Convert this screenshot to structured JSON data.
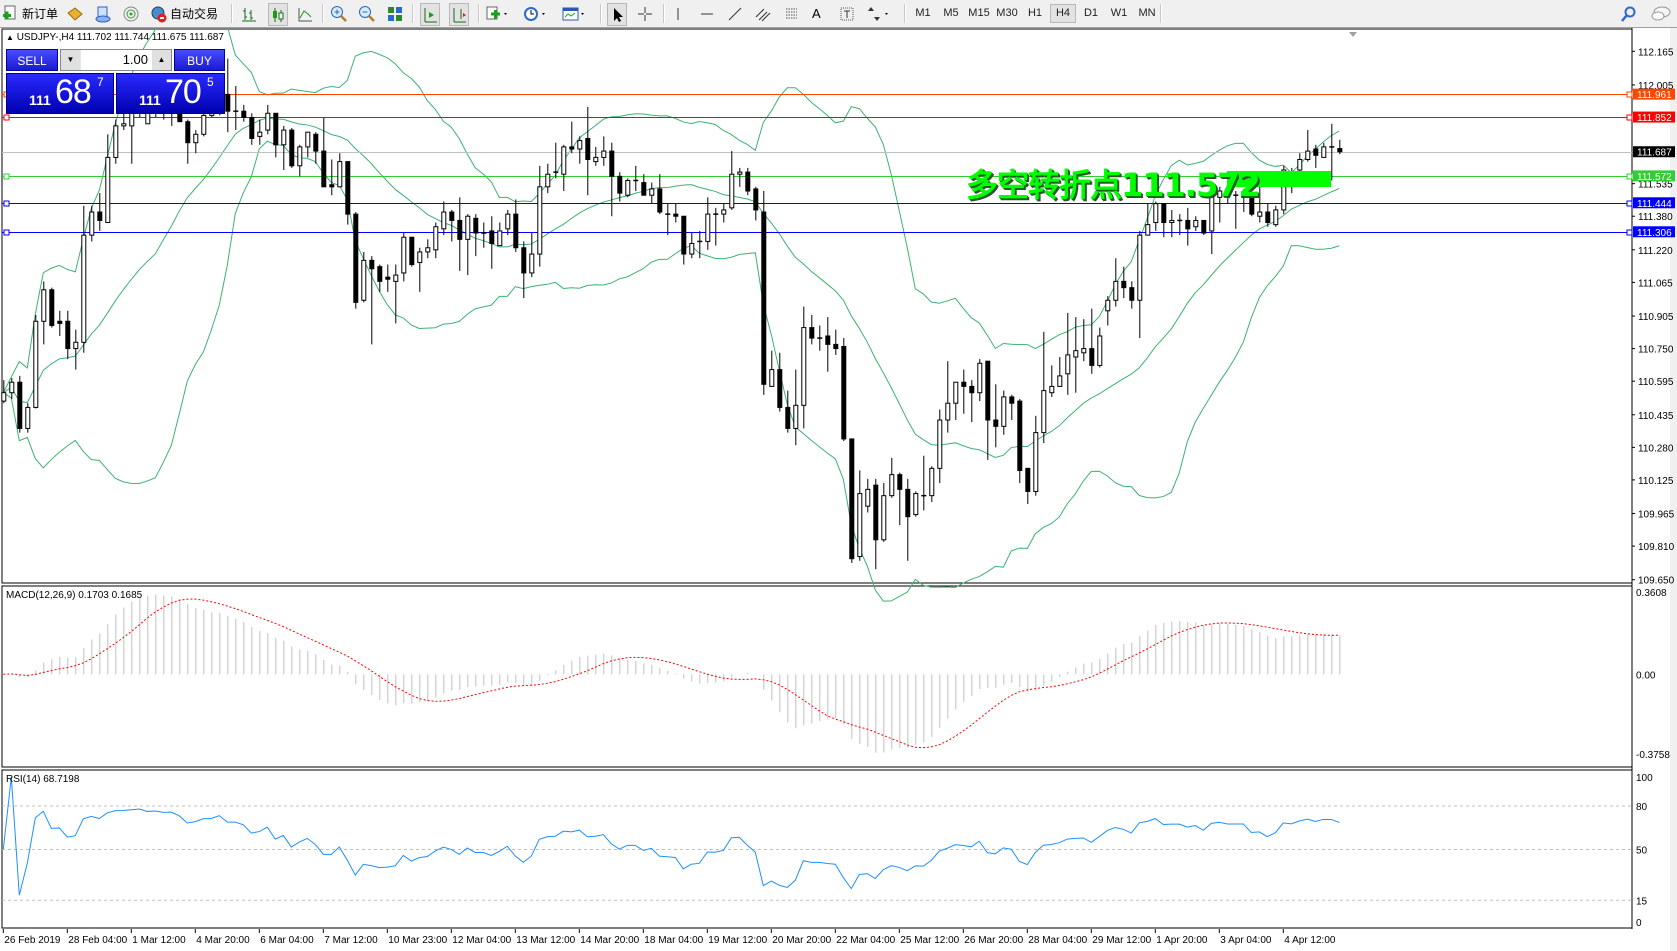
{
  "toolbar": {
    "new_order": "新订单",
    "auto_trading": "自动交易",
    "timeframes": [
      "M1",
      "M5",
      "M15",
      "M30",
      "H1",
      "H4",
      "D1",
      "W1",
      "MN"
    ],
    "active_timeframe": "H4"
  },
  "chart": {
    "symbol_info": "USDJPY-,H4  111.702 111.744 111.675 111.687",
    "trade_panel": {
      "sell": "SELL",
      "buy": "BUY",
      "lot": "1.00",
      "bid": {
        "prefix": "111",
        "pips": "68",
        "fraction": "7"
      },
      "ask": {
        "prefix": "111",
        "pips": "70",
        "fraction": "5"
      }
    },
    "annotation": "多空转折点111.572",
    "annotation_color": "#00FF00",
    "price_ticks": [
      "112.165",
      "112.005",
      "111.535",
      "111.380",
      "111.220",
      "111.065",
      "110.905",
      "110.750",
      "110.595",
      "110.435",
      "110.280",
      "110.125",
      "109.965",
      "109.810",
      "109.650"
    ],
    "levels": [
      {
        "price": "111.961",
        "color": "#FF4500",
        "text_color": "#FFFFFF"
      },
      {
        "price": "111.852",
        "color": "#FF0000",
        "text_color": "#FFFFFF"
      },
      {
        "price": "111.687",
        "color": "#000000",
        "line_color": "#C0C0C0",
        "text_color": "#FFFFFF"
      },
      {
        "price": "111.572",
        "color": "#32CD32",
        "text_color": "#FFFFFF"
      },
      {
        "price": "111.444",
        "color": "#0000FF",
        "text_color": "#FFFFFF"
      },
      {
        "price": "111.306",
        "color": "#0000FF",
        "text_color": "#FFFFFF"
      }
    ],
    "time_labels": [
      "26 Feb 2019",
      "28 Feb 04:00",
      "1 Mar 12:00",
      "4 Mar 20:00",
      "6 Mar 04:00",
      "7 Mar 12:00",
      "10 Mar 23:00",
      "12 Mar 04:00",
      "13 Mar 12:00",
      "14 Mar 20:00",
      "18 Mar 04:00",
      "19 Mar 12:00",
      "20 Mar 20:00",
      "22 Mar 04:00",
      "25 Mar 12:00",
      "26 Mar 20:00",
      "28 Mar 04:00",
      "29 Mar 12:00",
      "1 Apr 20:00",
      "3 Apr 04:00",
      "4 Apr 12:00"
    ],
    "bands_color": "#3CB371"
  },
  "macd": {
    "label": "MACD(12,26,9) 0.1703 0.1685",
    "ticks": [
      "0.3608",
      "0.00",
      "-0.3758"
    ],
    "range": [
      -0.3758,
      0.3608
    ],
    "histogram_color": "#C0C0C0",
    "signal_color": "#FF0000"
  },
  "rsi": {
    "label": "RSI(14) 68.7198",
    "ticks": [
      "100",
      "80",
      "50",
      "15",
      "0"
    ],
    "levels": [
      80,
      50,
      15
    ],
    "line_color": "#1E90FF"
  },
  "chart_data": {
    "type": "candlestick",
    "symbol": "USDJPY-",
    "timeframe": "H4",
    "ylim": [
      109.65,
      112.165
    ],
    "candle_format": [
      "open",
      "high",
      "low",
      "close"
    ],
    "candles": [
      [
        110.5,
        110.6,
        110.49,
        110.54
      ],
      [
        110.54,
        110.61,
        110.51,
        110.59
      ],
      [
        110.59,
        110.62,
        110.35,
        110.37
      ],
      [
        110.37,
        110.49,
        110.35,
        110.47
      ],
      [
        110.47,
        110.91,
        110.465,
        110.88
      ],
      [
        110.88,
        111.07,
        110.77,
        111.03
      ],
      [
        111.03,
        111.04,
        110.85,
        110.86
      ],
      [
        110.88,
        110.93,
        110.81,
        110.87
      ],
      [
        110.88,
        110.93,
        110.7,
        110.75
      ],
      [
        110.75,
        110.84,
        110.65,
        110.78
      ],
      [
        110.78,
        111.43,
        110.73,
        111.29
      ],
      [
        111.29,
        111.43,
        111.26,
        111.4
      ],
      [
        111.4,
        111.49,
        111.31,
        111.36
      ],
      [
        111.35,
        111.77,
        111.35,
        111.66
      ],
      [
        111.66,
        111.84,
        111.63,
        111.81
      ],
      [
        111.81,
        111.87,
        111.79,
        111.82
      ],
      [
        111.81,
        111.93,
        111.63,
        111.87
      ],
      [
        111.87,
        111.94,
        111.85,
        111.91
      ],
      [
        111.82,
        111.93,
        111.82,
        111.87
      ],
      [
        111.87,
        111.92,
        111.85,
        111.89
      ],
      [
        111.89,
        111.91,
        111.84,
        111.87
      ],
      [
        111.87,
        111.9,
        111.81,
        111.88
      ],
      [
        111.88,
        111.89,
        111.83,
        111.83
      ],
      [
        111.83,
        111.84,
        111.63,
        111.73
      ],
      [
        111.73,
        111.79,
        111.68,
        111.77
      ],
      [
        111.77,
        111.87,
        111.76,
        111.86
      ],
      [
        111.86,
        111.89,
        111.85,
        111.87
      ],
      [
        111.87,
        111.98,
        111.86,
        111.96
      ],
      [
        111.96,
        112.13,
        111.78,
        111.88
      ],
      [
        111.88,
        112.0,
        111.79,
        111.88
      ],
      [
        111.88,
        111.91,
        111.83,
        111.85
      ],
      [
        111.85,
        111.87,
        111.72,
        111.75
      ],
      [
        111.76,
        111.84,
        111.72,
        111.78
      ],
      [
        111.79,
        111.91,
        111.77,
        111.87
      ],
      [
        111.87,
        111.87,
        111.66,
        111.72
      ],
      [
        111.72,
        111.81,
        111.6,
        111.79
      ],
      [
        111.79,
        111.8,
        111.61,
        111.62
      ],
      [
        111.62,
        111.72,
        111.57,
        111.71
      ],
      [
        111.71,
        111.78,
        111.66,
        111.78
      ],
      [
        111.77,
        111.78,
        111.63,
        111.69
      ],
      [
        111.69,
        111.85,
        111.52,
        111.52
      ],
      [
        111.53,
        111.65,
        111.48,
        111.52
      ],
      [
        111.52,
        111.68,
        111.52,
        111.64
      ],
      [
        111.64,
        111.64,
        111.34,
        111.39
      ],
      [
        111.39,
        111.4,
        110.94,
        110.97
      ],
      [
        110.98,
        111.21,
        110.97,
        111.17
      ],
      [
        111.17,
        111.19,
        110.77,
        111.13
      ],
      [
        111.14,
        111.15,
        111.02,
        111.07
      ],
      [
        111.09,
        111.15,
        111.02,
        111.08
      ],
      [
        111.07,
        111.15,
        110.87,
        111.1
      ],
      [
        111.11,
        111.3,
        111.07,
        111.28
      ],
      [
        111.28,
        111.28,
        111.14,
        111.15
      ],
      [
        111.16,
        111.23,
        111.02,
        111.21
      ],
      [
        111.21,
        111.27,
        111.18,
        111.23
      ],
      [
        111.22,
        111.35,
        111.18,
        111.33
      ],
      [
        111.32,
        111.45,
        111.29,
        111.4
      ],
      [
        111.4,
        111.41,
        111.26,
        111.36
      ],
      [
        111.36,
        111.47,
        111.12,
        111.27
      ],
      [
        111.27,
        111.39,
        111.1,
        111.38
      ],
      [
        111.37,
        111.39,
        111.19,
        111.3
      ],
      [
        111.3,
        111.35,
        111.23,
        111.3
      ],
      [
        111.31,
        111.38,
        111.13,
        111.25
      ],
      [
        111.24,
        111.35,
        111.24,
        111.31
      ],
      [
        111.32,
        111.41,
        111.29,
        111.39
      ],
      [
        111.39,
        111.46,
        111.21,
        111.23
      ],
      [
        111.23,
        111.26,
        110.99,
        111.11
      ],
      [
        111.11,
        111.3,
        111.09,
        111.2
      ],
      [
        111.2,
        111.62,
        111.14,
        111.52
      ],
      [
        111.52,
        111.63,
        111.49,
        111.58
      ],
      [
        111.59,
        111.73,
        111.56,
        111.59
      ],
      [
        111.58,
        111.72,
        111.5,
        111.71
      ],
      [
        111.71,
        111.83,
        111.68,
        111.7
      ],
      [
        111.7,
        111.76,
        111.63,
        111.74
      ],
      [
        111.75,
        111.9,
        111.48,
        111.65
      ],
      [
        111.64,
        111.71,
        111.62,
        111.66
      ],
      [
        111.66,
        111.76,
        111.62,
        111.69
      ],
      [
        111.69,
        111.73,
        111.38,
        111.57
      ],
      [
        111.57,
        111.59,
        111.45,
        111.49
      ],
      [
        111.48,
        111.56,
        111.47,
        111.55
      ],
      [
        111.55,
        111.62,
        111.5,
        111.55
      ],
      [
        111.54,
        111.58,
        111.48,
        111.48
      ],
      [
        111.48,
        111.54,
        111.44,
        111.51
      ],
      [
        111.51,
        111.58,
        111.39,
        111.4
      ],
      [
        111.39,
        111.44,
        111.29,
        111.39
      ],
      [
        111.39,
        111.44,
        111.35,
        111.38
      ],
      [
        111.38,
        111.38,
        111.15,
        111.2
      ],
      [
        111.2,
        111.3,
        111.18,
        111.25
      ],
      [
        111.26,
        111.31,
        111.18,
        111.26
      ],
      [
        111.26,
        111.47,
        111.22,
        111.39
      ],
      [
        111.39,
        111.42,
        111.24,
        111.39
      ],
      [
        111.39,
        111.44,
        111.35,
        111.41
      ],
      [
        111.42,
        111.69,
        111.41,
        111.58
      ],
      [
        111.58,
        111.61,
        111.52,
        111.59
      ],
      [
        111.59,
        111.61,
        111.48,
        111.5
      ],
      [
        111.51,
        111.52,
        111.36,
        111.41
      ],
      [
        111.4,
        111.5,
        110.53,
        110.58
      ],
      [
        110.57,
        110.74,
        110.57,
        110.65
      ],
      [
        110.65,
        110.73,
        110.45,
        110.47
      ],
      [
        110.47,
        110.55,
        110.35,
        110.37
      ],
      [
        110.37,
        110.65,
        110.29,
        110.48
      ],
      [
        110.48,
        110.95,
        110.37,
        110.85
      ],
      [
        110.85,
        110.91,
        110.77,
        110.8
      ],
      [
        110.8,
        110.86,
        110.74,
        110.8
      ],
      [
        110.81,
        110.9,
        110.64,
        110.77
      ],
      [
        110.77,
        110.84,
        110.72,
        110.75
      ],
      [
        110.76,
        110.8,
        110.31,
        110.32
      ],
      [
        110.32,
        110.32,
        109.73,
        109.75
      ],
      [
        109.76,
        110.17,
        109.74,
        110.06
      ],
      [
        110.0,
        110.13,
        109.97,
        110.08
      ],
      [
        110.1,
        110.13,
        109.7,
        109.84
      ],
      [
        109.84,
        110.11,
        109.83,
        110.05
      ],
      [
        110.05,
        110.23,
        110.04,
        110.15
      ],
      [
        110.15,
        110.16,
        109.91,
        110.08
      ],
      [
        110.08,
        110.13,
        109.74,
        109.95
      ],
      [
        109.96,
        110.07,
        109.95,
        110.06
      ],
      [
        110.05,
        110.24,
        109.98,
        110.05
      ],
      [
        110.05,
        110.19,
        110.02,
        110.18
      ],
      [
        110.18,
        110.46,
        110.11,
        110.41
      ],
      [
        110.41,
        110.69,
        110.35,
        110.49
      ],
      [
        110.49,
        110.59,
        110.41,
        110.59
      ],
      [
        110.59,
        110.65,
        110.44,
        110.57
      ],
      [
        110.57,
        110.6,
        110.4,
        110.54
      ],
      [
        110.54,
        110.7,
        110.5,
        110.68
      ],
      [
        110.69,
        110.69,
        110.22,
        110.41
      ],
      [
        110.41,
        110.58,
        110.28,
        110.38
      ],
      [
        110.38,
        110.55,
        110.34,
        110.52
      ],
      [
        110.52,
        110.53,
        110.41,
        110.49
      ],
      [
        110.5,
        110.51,
        110.11,
        110.17
      ],
      [
        110.18,
        110.18,
        110.01,
        110.07
      ],
      [
        110.07,
        110.43,
        110.05,
        110.35
      ],
      [
        110.35,
        110.83,
        110.3,
        110.55
      ],
      [
        110.54,
        110.67,
        110.52,
        110.57
      ],
      [
        110.57,
        110.71,
        110.57,
        110.62
      ],
      [
        110.63,
        110.92,
        110.53,
        110.72
      ],
      [
        110.71,
        110.9,
        110.54,
        110.74
      ],
      [
        110.73,
        110.89,
        110.69,
        110.75
      ],
      [
        110.75,
        110.94,
        110.63,
        110.67
      ],
      [
        110.67,
        110.85,
        110.66,
        110.81
      ],
      [
        110.93,
        111.0,
        110.86,
        110.98
      ],
      [
        110.98,
        111.18,
        110.95,
        111.07
      ],
      [
        111.07,
        111.14,
        110.99,
        111.04
      ],
      [
        111.04,
        111.07,
        110.94,
        110.98
      ],
      [
        110.98,
        111.31,
        110.8,
        111.29
      ],
      [
        111.29,
        111.44,
        111.29,
        111.34
      ],
      [
        111.35,
        111.45,
        111.31,
        111.44
      ],
      [
        111.44,
        111.44,
        111.28,
        111.35
      ],
      [
        111.35,
        111.41,
        111.28,
        111.36
      ],
      [
        111.36,
        111.39,
        111.29,
        111.36
      ],
      [
        111.36,
        111.42,
        111.24,
        111.32
      ],
      [
        111.33,
        111.38,
        111.31,
        111.36
      ],
      [
        111.36,
        111.36,
        111.29,
        111.3
      ],
      [
        111.31,
        111.53,
        111.2,
        111.47
      ],
      [
        111.47,
        111.52,
        111.35,
        111.5
      ],
      [
        111.51,
        111.53,
        111.44,
        111.48
      ],
      [
        111.48,
        111.5,
        111.32,
        111.48
      ],
      [
        111.47,
        111.51,
        111.4,
        111.48
      ],
      [
        111.48,
        111.48,
        111.38,
        111.39
      ],
      [
        111.38,
        111.52,
        111.35,
        111.4
      ],
      [
        111.4,
        111.44,
        111.33,
        111.35
      ],
      [
        111.34,
        111.43,
        111.33,
        111.41
      ],
      [
        111.41,
        111.62,
        111.39,
        111.6
      ],
      [
        111.53,
        111.61,
        111.49,
        111.59
      ],
      [
        111.6,
        111.68,
        111.58,
        111.65
      ],
      [
        111.65,
        111.79,
        111.64,
        111.69
      ],
      [
        111.7,
        111.72,
        111.61,
        111.67
      ],
      [
        111.66,
        111.73,
        111.66,
        111.71
      ],
      [
        111.71,
        111.82,
        111.55,
        111.71
      ],
      [
        111.702,
        111.744,
        111.675,
        111.687
      ]
    ]
  }
}
